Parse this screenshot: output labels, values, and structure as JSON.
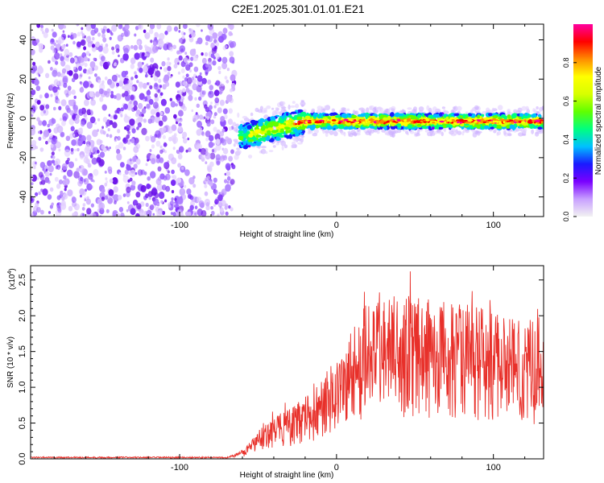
{
  "title": "C2E1.2025.301.01.01.E21",
  "chart_data": [
    {
      "type": "heatmap",
      "xlabel": "Height of straight line (km)",
      "ylabel": "Frequency (Hz)",
      "xlim": [
        -195,
        132
      ],
      "ylim": [
        -50,
        48
      ],
      "xticks": [
        -100,
        0,
        100
      ],
      "yticks": [
        -40,
        -20,
        0,
        20,
        40
      ],
      "noise_region_x": [
        -195,
        -65
      ],
      "transition_x": [
        -65,
        -20
      ],
      "signal_region_x": [
        -20,
        132
      ],
      "signal_frequency_hz": -1.5,
      "signal_frequency_at_transition_hz": -10,
      "colorbar": {
        "label": "Normalized spectral amplitude",
        "range": [
          0,
          1
        ],
        "ticks": [
          "0.0",
          "0.2",
          "0.4",
          "0.6",
          "0.8"
        ],
        "tick_values": [
          0.0,
          0.2,
          0.4,
          0.6,
          0.8
        ],
        "colors": [
          "#f2f2f2",
          "#c8a0ff",
          "#7a00ff",
          "#1a1aff",
          "#00c0ff",
          "#00ff80",
          "#60ff00",
          "#d8ff00",
          "#ffff00",
          "#ff8c00",
          "#ff0000",
          "#ff00a0"
        ]
      }
    },
    {
      "type": "line",
      "xlabel": "Height of straight line (km)",
      "ylabel": "SNR (10 * v/v)",
      "yscale_label": "(x10",
      "yscale_exponent": "4",
      "yscale_suffix": ")",
      "xlim": [
        -195,
        132
      ],
      "ylim": [
        0,
        2.7
      ],
      "xticks": [
        -100,
        0,
        100
      ],
      "yticks": [
        "0.0",
        "0.5",
        "1.0",
        "1.5",
        "2.0",
        "2.5"
      ],
      "ytick_values": [
        0.0,
        0.5,
        1.0,
        1.5,
        2.0,
        2.5
      ],
      "line_color": "#e8302a",
      "envelope": [
        {
          "x": -195,
          "y": 0.02
        },
        {
          "x": -70,
          "y": 0.02
        },
        {
          "x": -58,
          "y": 0.15
        },
        {
          "x": -45,
          "y": 0.55
        },
        {
          "x": -30,
          "y": 0.7
        },
        {
          "x": -15,
          "y": 0.95
        },
        {
          "x": -5,
          "y": 1.3
        },
        {
          "x": 5,
          "y": 1.6
        },
        {
          "x": 15,
          "y": 2.1
        },
        {
          "x": 30,
          "y": 2.3
        },
        {
          "x": 45,
          "y": 2.3
        },
        {
          "x": 70,
          "y": 2.2
        },
        {
          "x": 100,
          "y": 2.1
        },
        {
          "x": 132,
          "y": 1.9
        }
      ]
    }
  ]
}
